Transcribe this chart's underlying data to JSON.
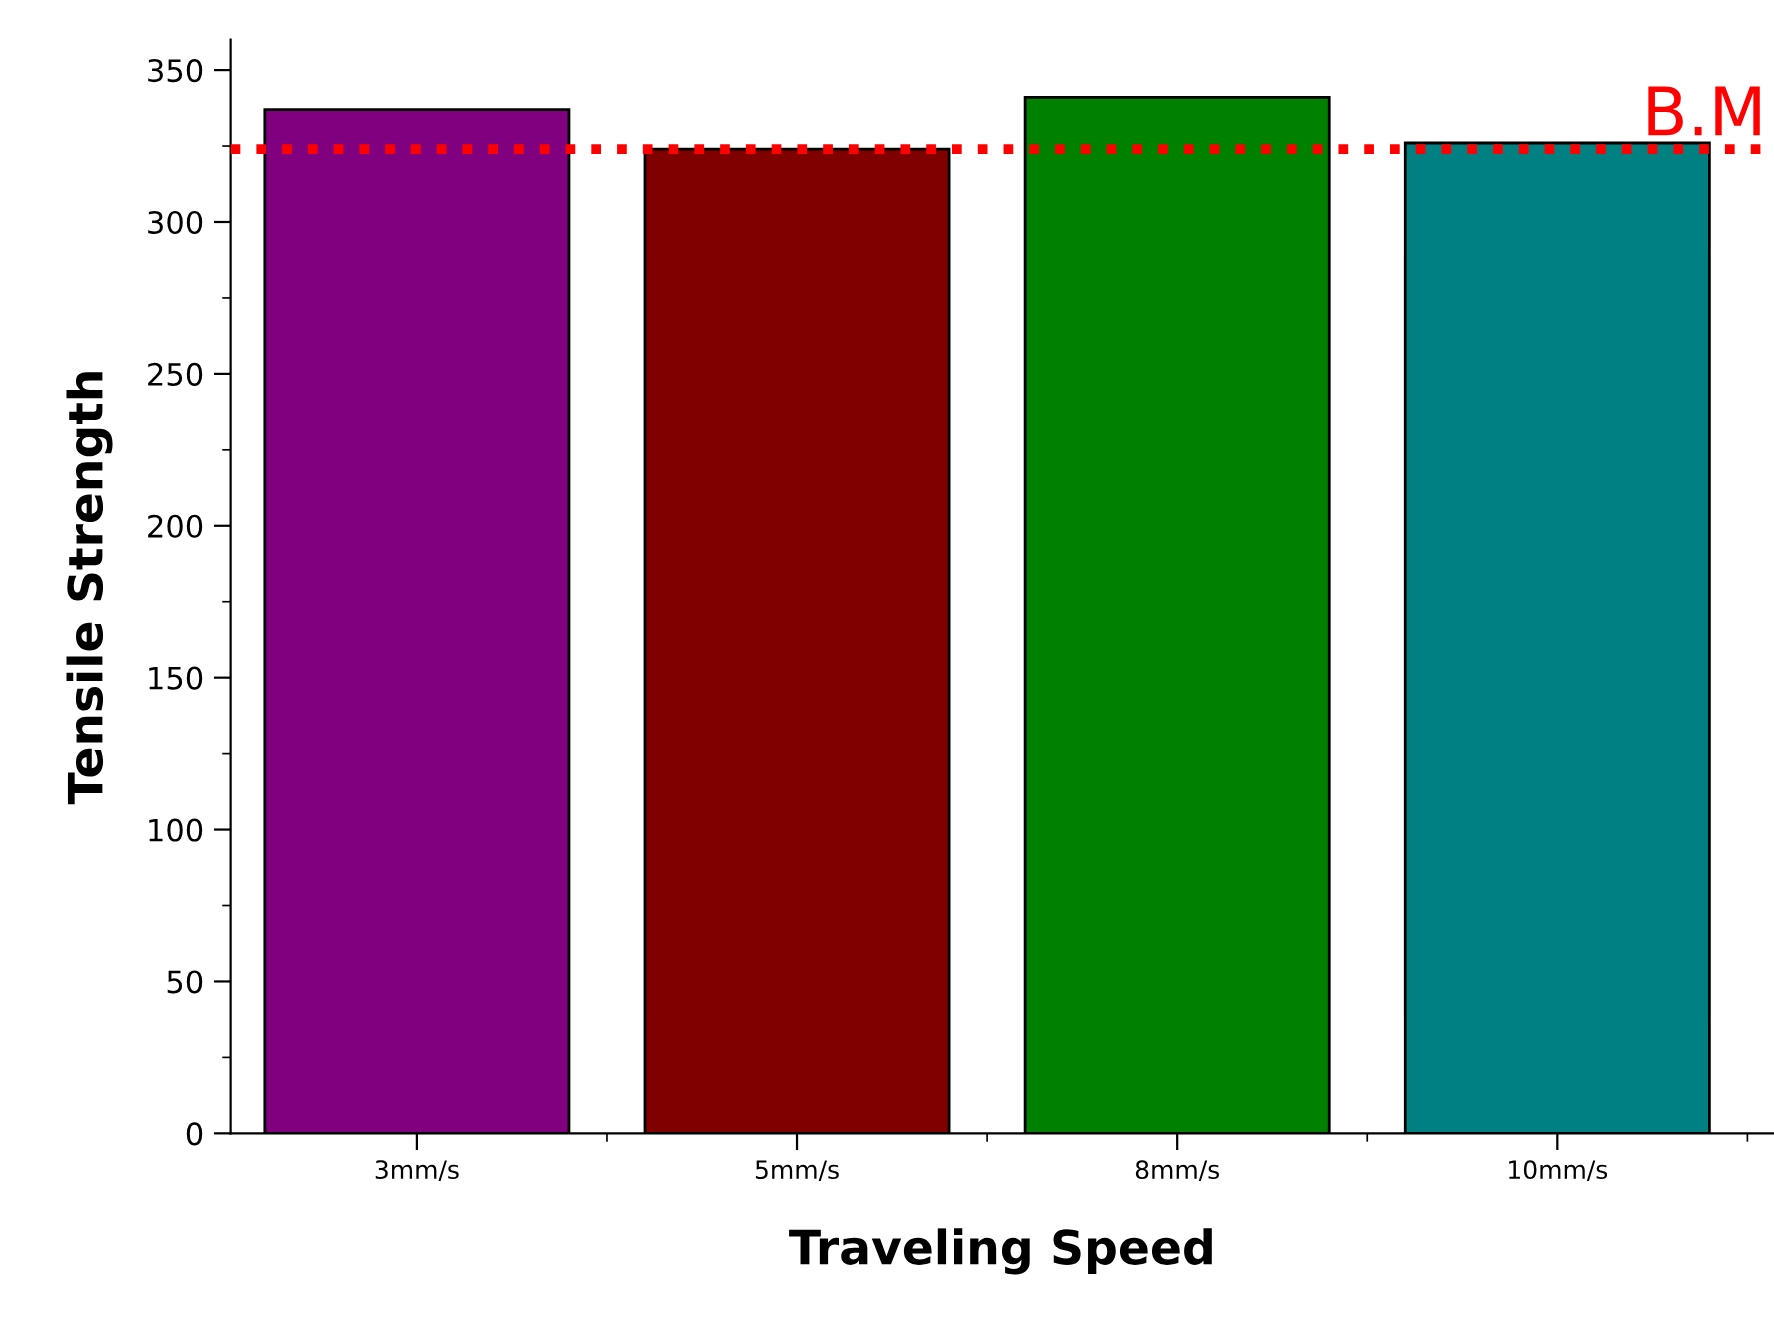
{
  "chart_data": {
    "type": "bar",
    "xlabel": "Traveling Speed",
    "ylabel": "Tensile Strength",
    "categories": [
      "3mm/s",
      "5mm/s",
      "8mm/s",
      "10mm/s"
    ],
    "values": [
      337,
      324,
      341,
      326
    ],
    "colors": [
      "#800080",
      "#800000",
      "#008000",
      "#008080"
    ],
    "ylim": [
      0,
      360
    ],
    "yticks": [
      0,
      50,
      100,
      150,
      200,
      250,
      300,
      350
    ],
    "grid": false,
    "legend": false,
    "ref_lines": [
      {
        "axis": "y",
        "value": 324,
        "label": "B.M",
        "color": "#ff0000",
        "line_style": "dotted"
      }
    ]
  }
}
